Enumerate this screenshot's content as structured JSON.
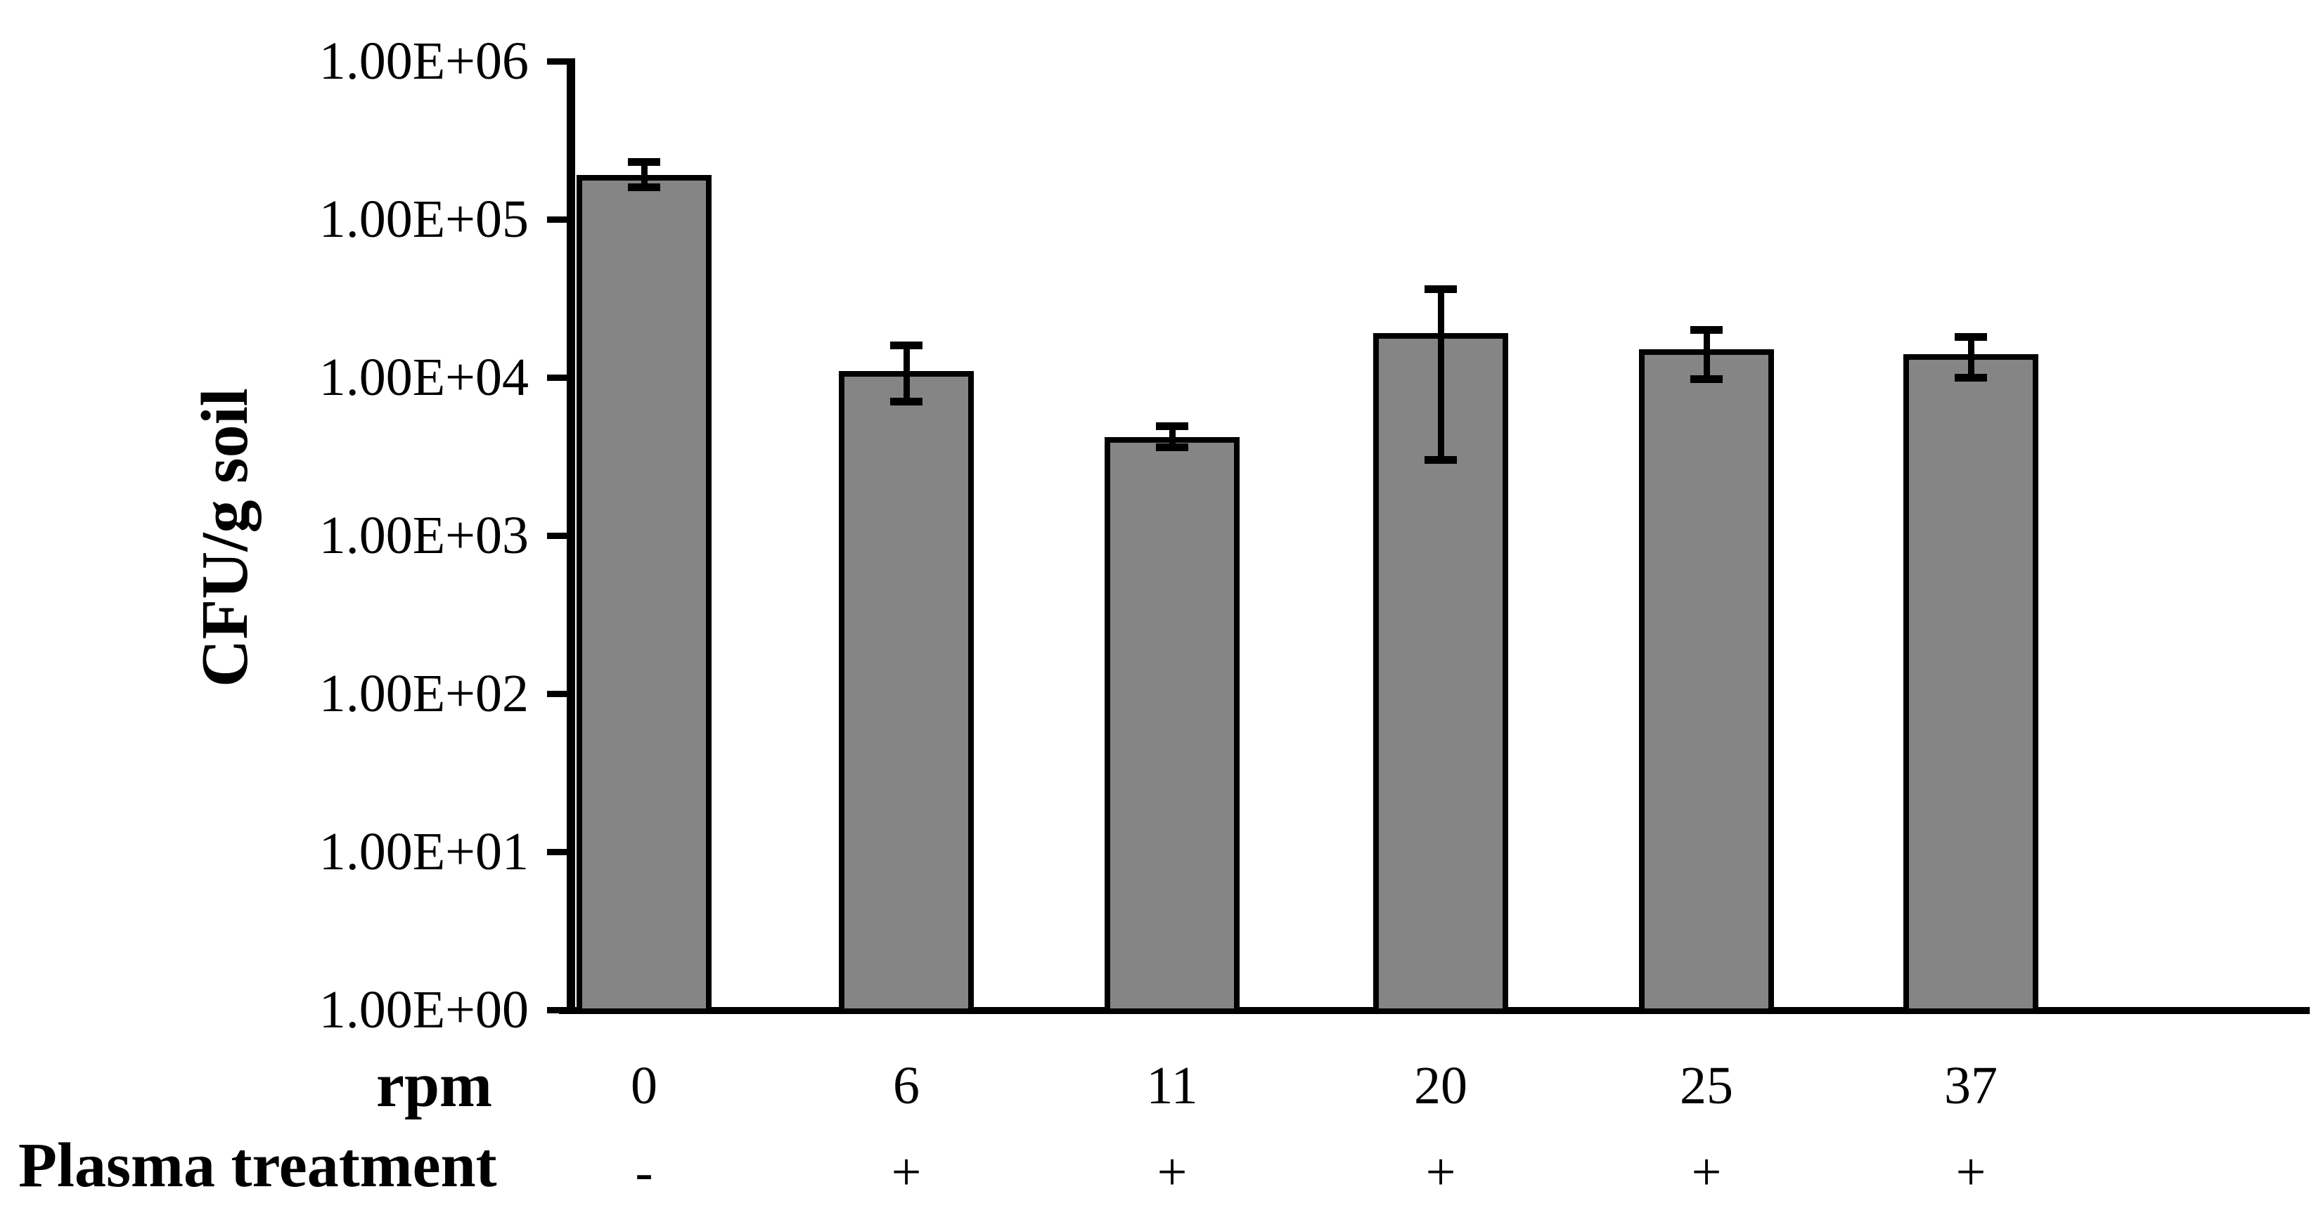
{
  "chart_data": {
    "type": "bar",
    "title": "",
    "ylabel": "CFU/g soil",
    "xlabel_row1": "rpm",
    "xlabel_row2": "Plasma treatment",
    "y_scale": "log10",
    "ylim": [
      1,
      1000000
    ],
    "grid": false,
    "legend": null,
    "y_tick_labels": [
      "1.00E+06",
      "1.00E+05",
      "1.00E+04",
      "1.00E+03",
      "1.00E+02",
      "1.00E+01",
      "1.00E+00"
    ],
    "categories_rpm": [
      "0",
      "6",
      "11",
      "20",
      "25",
      "37"
    ],
    "plasma_treatment": [
      "-",
      "+",
      "+",
      "+",
      "+",
      "+"
    ],
    "series": [
      {
        "name": "CFU per g soil",
        "values": [
          190000,
          11000,
          4200,
          19000,
          15000,
          14000
        ],
        "error_high": [
          230000,
          16000,
          4900,
          36000,
          20000,
          18000
        ],
        "error_low": [
          160000,
          7000,
          3600,
          3000,
          9700,
          9900
        ]
      }
    ],
    "bar_fill_color": "#858585",
    "bar_border_color": "#000000",
    "axis_color": "#000000",
    "background_color": "#ffffff"
  }
}
